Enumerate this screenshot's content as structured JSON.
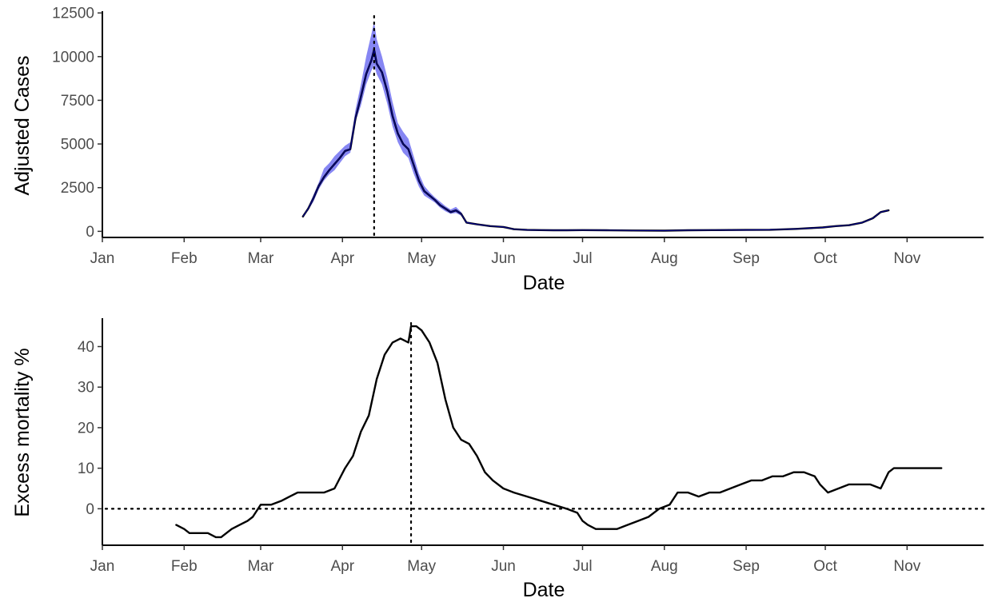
{
  "chart_data": [
    {
      "type": "line",
      "xlabel": "Date",
      "ylabel": "Adjusted Cases",
      "x_axis": {
        "type": "date",
        "range": [
          "2020-01-01",
          "2020-11-30"
        ]
      },
      "ylim": [
        -350,
        12600
      ],
      "x_ticks": [
        {
          "date": "2020-01-01",
          "label": "Jan"
        },
        {
          "date": "2020-02-01",
          "label": "Feb"
        },
        {
          "date": "2020-03-01",
          "label": "Mar"
        },
        {
          "date": "2020-04-01",
          "label": "Apr"
        },
        {
          "date": "2020-05-01",
          "label": "May"
        },
        {
          "date": "2020-06-01",
          "label": "Jun"
        },
        {
          "date": "2020-07-01",
          "label": "Jul"
        },
        {
          "date": "2020-08-01",
          "label": "Aug"
        },
        {
          "date": "2020-09-01",
          "label": "Sep"
        },
        {
          "date": "2020-10-01",
          "label": "Oct"
        },
        {
          "date": "2020-11-01",
          "label": "Nov"
        }
      ],
      "y_ticks": [
        {
          "value": 0,
          "label": "0"
        },
        {
          "value": 2500,
          "label": "2500"
        },
        {
          "value": 5000,
          "label": "5000"
        },
        {
          "value": 7500,
          "label": "7500"
        },
        {
          "value": 10000,
          "label": "10000"
        },
        {
          "value": 12500,
          "label": "12500"
        }
      ],
      "grid": false,
      "colors": {
        "line": "#000000",
        "line_core": "#00008b",
        "band": "#7f7ff2"
      },
      "vertical_reference": {
        "date": "2020-04-13",
        "style": "dotted"
      },
      "series": [
        {
          "x": [
            "2020-03-17",
            "2020-03-19",
            "2020-03-21",
            "2020-03-23",
            "2020-03-25",
            "2020-03-27",
            "2020-03-29",
            "2020-03-31",
            "2020-04-02",
            "2020-04-04",
            "2020-04-06",
            "2020-04-08",
            "2020-04-10",
            "2020-04-12",
            "2020-04-13",
            "2020-04-14",
            "2020-04-16",
            "2020-04-18",
            "2020-04-20",
            "2020-04-22",
            "2020-04-24",
            "2020-04-26",
            "2020-04-28",
            "2020-04-30",
            "2020-05-02",
            "2020-05-04",
            "2020-05-06",
            "2020-05-08",
            "2020-05-10",
            "2020-05-12",
            "2020-05-14",
            "2020-05-16",
            "2020-05-18",
            "2020-05-22",
            "2020-05-27",
            "2020-06-01",
            "2020-06-05",
            "2020-06-10",
            "2020-06-15",
            "2020-06-20",
            "2020-06-25",
            "2020-07-01",
            "2020-07-10",
            "2020-07-20",
            "2020-08-01",
            "2020-08-10",
            "2020-08-20",
            "2020-09-01",
            "2020-09-10",
            "2020-09-20",
            "2020-09-30",
            "2020-10-05",
            "2020-10-10",
            "2020-10-15",
            "2020-10-19",
            "2020-10-22",
            "2020-10-25"
          ],
          "y": [
            850,
            1300,
            1900,
            2600,
            3100,
            3500,
            3850,
            4200,
            4600,
            4700,
            6500,
            7700,
            9000,
            9800,
            10400,
            9600,
            9100,
            8000,
            6600,
            5600,
            5000,
            4700,
            3800,
            2900,
            2300,
            2050,
            1800,
            1500,
            1300,
            1100,
            1200,
            1000,
            500,
            400,
            300,
            250,
            120,
            80,
            70,
            60,
            60,
            70,
            60,
            50,
            40,
            60,
            70,
            80,
            90,
            140,
            220,
            300,
            350,
            500,
            750,
            1100,
            1200
          ],
          "lower": [
            850,
            1200,
            1700,
            2400,
            2900,
            3250,
            3500,
            3900,
            4300,
            4500,
            6300,
            7200,
            8400,
            9200,
            9500,
            9000,
            8400,
            7300,
            6000,
            5100,
            4500,
            4200,
            3300,
            2550,
            2050,
            1850,
            1650,
            1350,
            1150,
            1000,
            1050,
            900,
            450,
            360,
            270,
            220,
            100,
            65,
            55,
            50,
            50,
            60,
            50,
            40,
            30,
            50,
            60,
            70,
            80,
            130,
            210,
            285,
            330,
            470,
            710,
            1050,
            1150
          ],
          "upper": [
            850,
            1400,
            2100,
            2800,
            3600,
            3900,
            4300,
            4600,
            4900,
            5100,
            7000,
            8400,
            10000,
            11300,
            12000,
            11000,
            10000,
            8800,
            7400,
            6200,
            5700,
            5300,
            4300,
            3300,
            2600,
            2250,
            1950,
            1700,
            1450,
            1250,
            1400,
            1100,
            550,
            440,
            330,
            280,
            140,
            95,
            85,
            70,
            70,
            80,
            70,
            60,
            50,
            70,
            80,
            90,
            100,
            150,
            230,
            315,
            370,
            530,
            790,
            1150,
            1250
          ]
        }
      ]
    },
    {
      "type": "line",
      "xlabel": "Date",
      "ylabel": "Excess mortality %",
      "x_axis": {
        "type": "date",
        "range": [
          "2020-01-01",
          "2020-11-30"
        ]
      },
      "ylim": [
        -9,
        47
      ],
      "x_ticks": [
        {
          "date": "2020-01-01",
          "label": "Jan"
        },
        {
          "date": "2020-02-01",
          "label": "Feb"
        },
        {
          "date": "2020-03-01",
          "label": "Mar"
        },
        {
          "date": "2020-04-01",
          "label": "Apr"
        },
        {
          "date": "2020-05-01",
          "label": "May"
        },
        {
          "date": "2020-06-01",
          "label": "Jun"
        },
        {
          "date": "2020-07-01",
          "label": "Jul"
        },
        {
          "date": "2020-08-01",
          "label": "Aug"
        },
        {
          "date": "2020-09-01",
          "label": "Sep"
        },
        {
          "date": "2020-10-01",
          "label": "Oct"
        },
        {
          "date": "2020-11-01",
          "label": "Nov"
        }
      ],
      "y_ticks": [
        {
          "value": 0,
          "label": "0"
        },
        {
          "value": 10,
          "label": "10"
        },
        {
          "value": 20,
          "label": "20"
        },
        {
          "value": 30,
          "label": "30"
        },
        {
          "value": 40,
          "label": "40"
        }
      ],
      "grid": false,
      "colors": {
        "line": "#000000"
      },
      "vertical_reference": {
        "date": "2020-04-27",
        "style": "dotted"
      },
      "horizontal_reference": {
        "value": 0,
        "style": "dotted"
      },
      "series": [
        {
          "x": [
            "2020-01-29",
            "2020-02-01",
            "2020-02-03",
            "2020-02-06",
            "2020-02-10",
            "2020-02-13",
            "2020-02-15",
            "2020-02-17",
            "2020-02-19",
            "2020-02-22",
            "2020-02-25",
            "2020-02-27",
            "2020-03-01",
            "2020-03-05",
            "2020-03-09",
            "2020-03-12",
            "2020-03-15",
            "2020-03-20",
            "2020-03-25",
            "2020-03-29",
            "2020-04-02",
            "2020-04-05",
            "2020-04-08",
            "2020-04-11",
            "2020-04-14",
            "2020-04-17",
            "2020-04-20",
            "2020-04-23",
            "2020-04-26",
            "2020-04-27",
            "2020-04-29",
            "2020-05-01",
            "2020-05-04",
            "2020-05-07",
            "2020-05-10",
            "2020-05-13",
            "2020-05-16",
            "2020-05-19",
            "2020-05-22",
            "2020-05-25",
            "2020-05-28",
            "2020-06-01",
            "2020-06-05",
            "2020-06-10",
            "2020-06-15",
            "2020-06-20",
            "2020-06-25",
            "2020-06-29",
            "2020-07-01",
            "2020-07-03",
            "2020-07-06",
            "2020-07-10",
            "2020-07-14",
            "2020-07-18",
            "2020-07-22",
            "2020-07-26",
            "2020-07-30",
            "2020-08-03",
            "2020-08-06",
            "2020-08-10",
            "2020-08-14",
            "2020-08-18",
            "2020-08-22",
            "2020-08-26",
            "2020-08-30",
            "2020-09-03",
            "2020-09-07",
            "2020-09-11",
            "2020-09-15",
            "2020-09-19",
            "2020-09-23",
            "2020-09-27",
            "2020-09-29",
            "2020-10-02",
            "2020-10-06",
            "2020-10-10",
            "2020-10-14",
            "2020-10-18",
            "2020-10-22",
            "2020-10-25",
            "2020-10-27",
            "2020-10-30",
            "2020-11-03",
            "2020-11-07",
            "2020-11-11",
            "2020-11-14"
          ],
          "y": [
            -4,
            -5,
            -6,
            -6,
            -6,
            -7,
            -7,
            -6,
            -5,
            -4,
            -3,
            -2,
            1,
            1,
            2,
            3,
            4,
            4,
            4,
            5,
            10,
            13,
            19,
            23,
            32,
            38,
            41,
            42,
            41,
            45,
            45,
            44,
            41,
            36,
            27,
            20,
            17,
            16,
            13,
            9,
            7,
            5,
            4,
            3,
            2,
            1,
            0,
            -1,
            -3,
            -4,
            -5,
            -5,
            -5,
            -4,
            -3,
            -2,
            0,
            1,
            4,
            4,
            3,
            4,
            4,
            5,
            6,
            7,
            7,
            8,
            8,
            9,
            9,
            8,
            6,
            4,
            5,
            6,
            6,
            6,
            5,
            9,
            10,
            10,
            10,
            10,
            10,
            10
          ]
        }
      ]
    }
  ]
}
